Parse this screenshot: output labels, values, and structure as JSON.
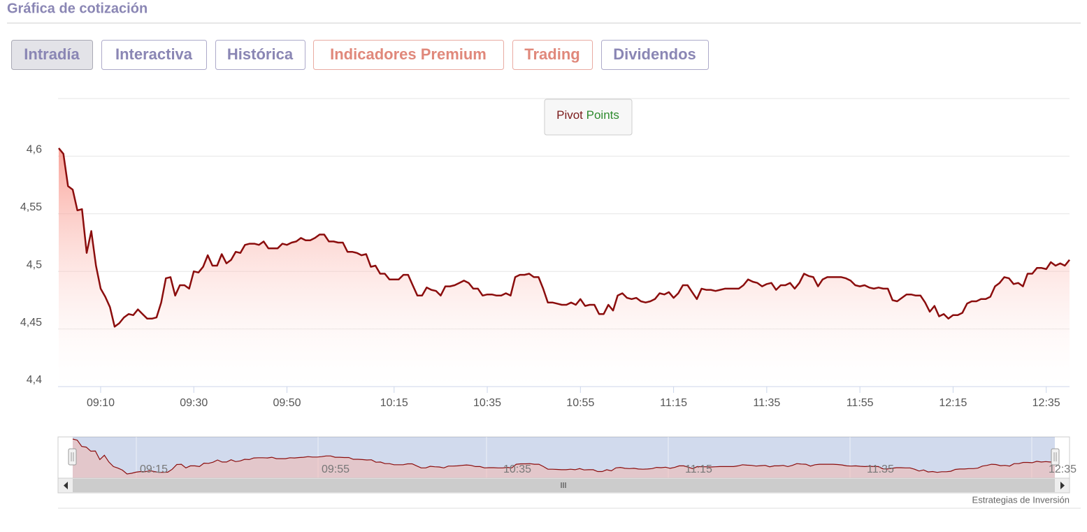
{
  "header": {
    "title": "Gráfica de cotización"
  },
  "tabs": [
    {
      "label": "Intradía",
      "active": true,
      "color": "#8a86b4"
    },
    {
      "label": "Interactiva",
      "active": false,
      "color": "#8a86b4"
    },
    {
      "label": "Histórica",
      "active": false,
      "color": "#8a86b4"
    },
    {
      "label": "Indicadores Premium",
      "active": false,
      "color": "#e0887b"
    },
    {
      "label": "Trading",
      "active": false,
      "color": "#e0887b"
    },
    {
      "label": "Dividendos",
      "active": false,
      "color": "#8a86b4"
    }
  ],
  "pivot_button": [
    "Pivot",
    "Points"
  ],
  "chart_data": {
    "type": "line",
    "color": "#8b0d0d",
    "grid": true,
    "ylim": [
      4.4,
      4.65
    ],
    "yticks": [
      {
        "value": 4.4,
        "label": "4,4"
      },
      {
        "value": 4.45,
        "label": "4,45"
      },
      {
        "value": 4.5,
        "label": "4,5"
      },
      {
        "value": 4.55,
        "label": "4,55"
      },
      {
        "value": 4.6,
        "label": "4,6"
      }
    ],
    "categories": [
      null,
      null,
      null,
      null,
      null,
      null,
      null,
      null,
      null,
      "09:10",
      null,
      null,
      null,
      null,
      null,
      null,
      null,
      null,
      null,
      null,
      null,
      null,
      null,
      null,
      null,
      null,
      null,
      null,
      null,
      "09:30",
      null,
      null,
      null,
      null,
      null,
      null,
      null,
      null,
      null,
      null,
      null,
      null,
      null,
      null,
      null,
      null,
      null,
      null,
      null,
      "09:50",
      null,
      null,
      null,
      null,
      null,
      null,
      null,
      null,
      null,
      null,
      null,
      null,
      null,
      null,
      null,
      null,
      null,
      null,
      null,
      null,
      null,
      null,
      "10:15",
      null,
      null,
      null,
      null,
      null,
      null,
      null,
      null,
      null,
      null,
      null,
      null,
      null,
      null,
      null,
      null,
      null,
      null,
      null,
      "10:35",
      null,
      null,
      null,
      null,
      null,
      null,
      null,
      null,
      null,
      null,
      null,
      null,
      null,
      null,
      null,
      null,
      null,
      null,
      null,
      "10:55",
      null,
      null,
      null,
      null,
      null,
      null,
      null,
      null,
      null,
      null,
      null,
      null,
      null,
      null,
      null,
      null,
      null,
      null,
      null,
      "11:15",
      null,
      null,
      null,
      null,
      null,
      null,
      null,
      null,
      null,
      null,
      null,
      null,
      null,
      null,
      null,
      null,
      null,
      null,
      null,
      "11:35",
      null,
      null,
      null,
      null,
      null,
      null,
      null,
      null,
      null,
      null,
      null,
      null,
      null,
      null,
      null,
      null,
      null,
      null,
      null,
      "11:55",
      null,
      null,
      null,
      null,
      null,
      null,
      null,
      null,
      null,
      null,
      null,
      null,
      null,
      null,
      null,
      null,
      null,
      null,
      null,
      "12:15",
      null,
      null,
      null,
      null,
      null,
      null,
      null,
      null,
      null,
      null,
      null,
      null,
      null,
      null,
      null,
      null,
      null,
      null,
      null,
      "12:35",
      null,
      null,
      null,
      null,
      null
    ],
    "values": [
      4.607,
      4.602,
      4.574,
      4.571,
      4.553,
      4.554,
      4.516,
      4.535,
      4.505,
      4.485,
      4.478,
      4.469,
      4.452,
      4.455,
      4.46,
      4.463,
      4.462,
      4.467,
      4.463,
      4.459,
      4.459,
      4.46,
      4.473,
      4.494,
      4.495,
      4.479,
      4.488,
      4.488,
      4.485,
      4.5,
      4.499,
      4.504,
      4.514,
      4.505,
      4.505,
      4.515,
      4.507,
      4.51,
      4.517,
      4.516,
      4.523,
      4.524,
      4.524,
      4.523,
      4.526,
      4.52,
      4.52,
      4.52,
      4.524,
      4.523,
      4.525,
      4.526,
      4.529,
      4.527,
      4.527,
      4.529,
      4.532,
      4.532,
      4.526,
      4.526,
      4.525,
      4.525,
      4.517,
      4.517,
      4.516,
      4.514,
      4.515,
      4.504,
      4.505,
      4.498,
      4.498,
      4.493,
      4.493,
      4.493,
      4.497,
      4.497,
      4.488,
      4.479,
      4.479,
      4.486,
      4.484,
      4.483,
      4.479,
      4.487,
      4.487,
      4.488,
      4.49,
      4.492,
      4.49,
      4.485,
      4.485,
      4.479,
      4.48,
      4.48,
      4.479,
      4.479,
      4.481,
      4.479,
      4.495,
      4.497,
      4.497,
      4.498,
      4.495,
      4.495,
      4.485,
      4.473,
      4.473,
      4.472,
      4.471,
      4.471,
      4.473,
      4.471,
      4.476,
      4.47,
      4.471,
      4.471,
      4.463,
      4.463,
      4.471,
      4.466,
      4.479,
      4.481,
      4.477,
      4.476,
      4.477,
      4.474,
      4.473,
      4.474,
      4.476,
      4.481,
      4.48,
      4.482,
      4.477,
      4.481,
      4.488,
      4.488,
      4.482,
      4.476,
      4.485,
      4.484,
      4.484,
      4.483,
      4.484,
      4.485,
      4.485,
      4.485,
      4.485,
      4.488,
      4.493,
      4.491,
      4.49,
      4.487,
      4.489,
      4.49,
      4.484,
      4.488,
      4.488,
      4.49,
      4.485,
      4.49,
      4.498,
      4.496,
      4.495,
      4.487,
      4.493,
      4.495,
      4.495,
      4.495,
      4.495,
      4.494,
      4.492,
      4.488,
      4.487,
      4.488,
      4.486,
      4.485,
      4.486,
      4.485,
      4.485,
      4.475,
      4.474,
      4.477,
      4.48,
      4.48,
      4.479,
      4.479,
      4.473,
      4.465,
      4.47,
      4.461,
      4.463,
      4.459,
      4.462,
      4.462,
      4.464,
      4.472,
      4.474,
      4.474,
      4.476,
      4.476,
      4.478,
      4.487,
      4.49,
      4.495,
      4.494,
      4.489,
      4.49,
      4.487,
      4.498,
      4.498,
      4.503,
      4.503,
      4.502,
      4.508,
      4.505,
      4.507,
      4.505,
      4.51
    ]
  },
  "navigator": {
    "labels": [
      "09:15",
      "09:55",
      "10:35",
      "11:15",
      "11:35",
      "12:35"
    ]
  },
  "credit": "Estrategias de Inversión"
}
